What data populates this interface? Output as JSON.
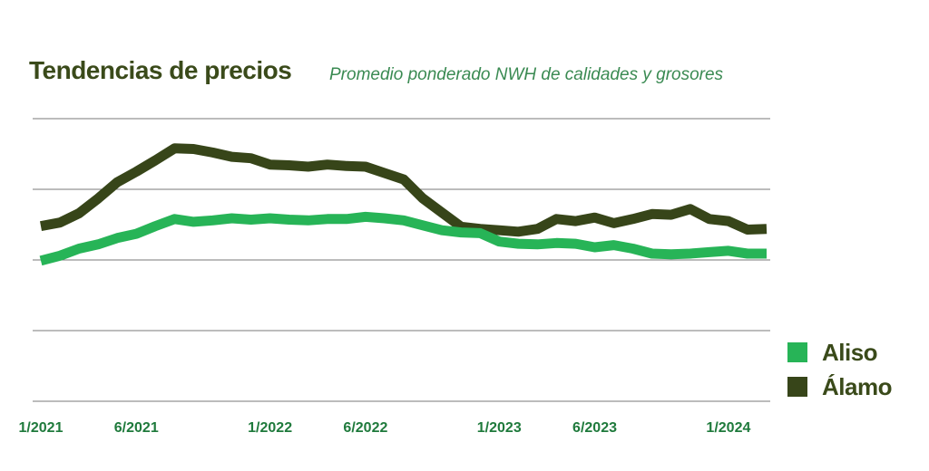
{
  "header": {
    "title": "Tendencias de precios",
    "subtitle": "Promedio ponderado NWH de calidades y grosores"
  },
  "colors": {
    "aliso": "#27b457",
    "alamo": "#374519",
    "grid": "#7a7a7a",
    "tick_label": "#1f7a3c"
  },
  "chart_data": {
    "type": "line",
    "title": "Tendencias de precios",
    "subtitle": "Promedio ponderado NWH de calidades y grosores",
    "xlabel": "",
    "ylabel": "",
    "x_ticks": [
      "1/2021",
      "6/2021",
      "1/2022",
      "6/2022",
      "1/2023",
      "6/2023",
      "1/2024"
    ],
    "x_months": [
      "1/2021",
      "2/2021",
      "3/2021",
      "4/2021",
      "5/2021",
      "6/2021",
      "7/2021",
      "8/2021",
      "9/2021",
      "10/2021",
      "11/2021",
      "12/2021",
      "1/2022",
      "2/2022",
      "3/2022",
      "4/2022",
      "5/2022",
      "6/2022",
      "7/2022",
      "8/2022",
      "9/2022",
      "10/2022",
      "11/2022",
      "12/2022",
      "1/2023",
      "2/2023",
      "3/2023",
      "4/2023",
      "5/2023",
      "6/2023",
      "7/2023",
      "8/2023",
      "9/2023",
      "10/2023",
      "11/2023",
      "12/2023",
      "1/2024",
      "2/2024",
      "3/2024"
    ],
    "ylim": [
      0,
      4
    ],
    "grid": true,
    "legend_position": "bottom-right",
    "series": [
      {
        "name": "Aliso",
        "color": "#27b457",
        "values": [
          1.99,
          2.06,
          2.16,
          2.22,
          2.31,
          2.37,
          2.48,
          2.58,
          2.54,
          2.56,
          2.59,
          2.57,
          2.59,
          2.57,
          2.56,
          2.58,
          2.58,
          2.61,
          2.59,
          2.56,
          2.49,
          2.42,
          2.39,
          2.38,
          2.26,
          2.23,
          2.22,
          2.24,
          2.23,
          2.18,
          2.21,
          2.16,
          2.09,
          2.08,
          2.09,
          2.11,
          2.13,
          2.09,
          2.09
        ]
      },
      {
        "name": "Álamo",
        "color": "#374519",
        "values": [
          2.48,
          2.53,
          2.66,
          2.87,
          3.1,
          3.25,
          3.41,
          3.58,
          3.57,
          3.52,
          3.46,
          3.44,
          3.35,
          3.34,
          3.32,
          3.35,
          3.33,
          3.32,
          3.23,
          3.14,
          2.87,
          2.67,
          2.47,
          2.44,
          2.42,
          2.4,
          2.44,
          2.58,
          2.55,
          2.6,
          2.52,
          2.58,
          2.65,
          2.64,
          2.72,
          2.58,
          2.55,
          2.43,
          2.44
        ]
      }
    ]
  },
  "legend": {
    "items": [
      {
        "label": "Aliso",
        "color": "#27b457"
      },
      {
        "label": "Álamo",
        "color": "#374519"
      }
    ]
  }
}
